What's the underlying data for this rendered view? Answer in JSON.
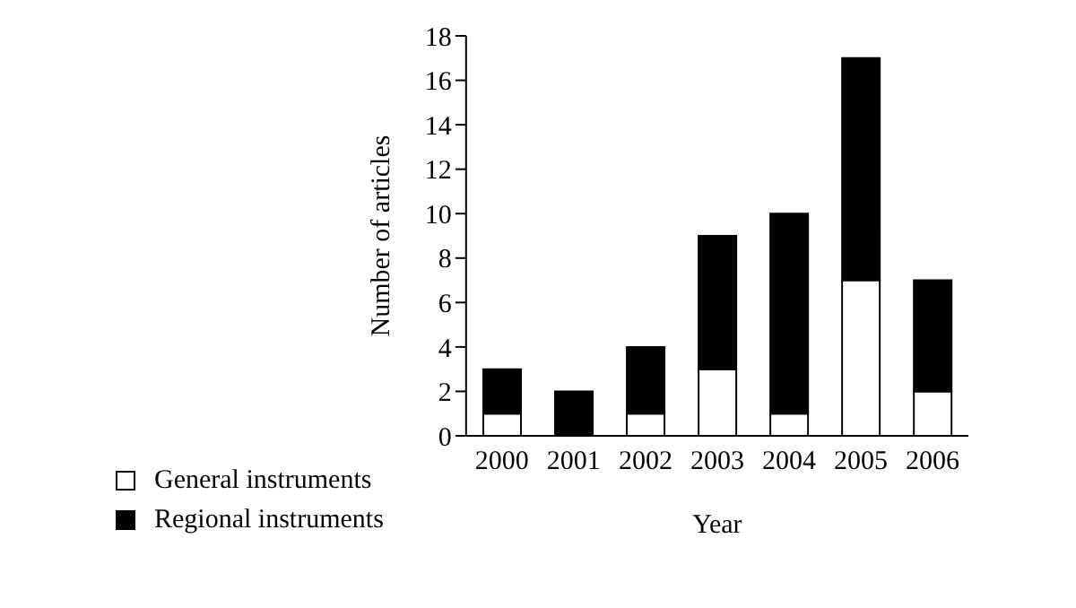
{
  "chart_data": {
    "type": "bar",
    "xlabel": "Year",
    "ylabel": "Number of articles",
    "categories": [
      "2000",
      "2001",
      "2002",
      "2003",
      "2004",
      "2005",
      "2006"
    ],
    "series": [
      {
        "name": "General instruments",
        "color": "#ffffff",
        "values": [
          1,
          0,
          1,
          3,
          1,
          7,
          2
        ]
      },
      {
        "name": "Regional instruments",
        "color": "#000000",
        "values": [
          2,
          2,
          3,
          6,
          9,
          10,
          5
        ]
      }
    ],
    "stacked": true,
    "ylim": [
      0,
      18
    ],
    "yticks": [
      0,
      2,
      4,
      6,
      8,
      10,
      12,
      14,
      16,
      18
    ],
    "grid": false,
    "legend": "bottom left"
  }
}
